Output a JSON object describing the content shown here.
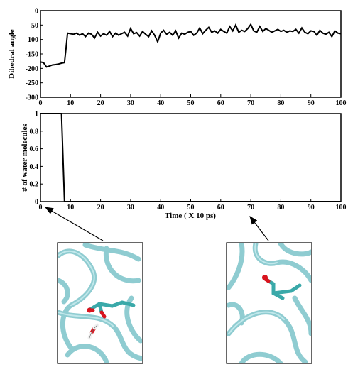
{
  "chart_data": [
    {
      "type": "line",
      "ylabel": "Dihedral angle",
      "xlabel": "",
      "xlim": [
        0,
        100
      ],
      "ylim": [
        -300,
        0
      ],
      "xticks": [
        "0",
        "10",
        "20",
        "30",
        "40",
        "50",
        "60",
        "70",
        "80",
        "90",
        "100"
      ],
      "yticks": [
        "0",
        "-50",
        "-100",
        "-150",
        "-200",
        "-250",
        "-300"
      ],
      "grid": false,
      "series": [
        {
          "x": [
            0,
            1,
            2,
            3,
            4,
            5,
            6,
            7,
            8,
            8.5,
            9,
            10,
            11,
            12,
            13,
            14,
            15,
            16,
            17,
            18,
            19,
            20,
            21,
            22,
            23,
            24,
            25,
            26,
            27,
            28,
            29,
            30,
            31,
            32,
            33,
            34,
            35,
            36,
            37,
            38,
            39,
            40,
            41,
            42,
            43,
            44,
            45,
            46,
            47,
            48,
            49,
            50,
            51,
            52,
            53,
            54,
            55,
            56,
            57,
            58,
            59,
            60,
            61,
            62,
            63,
            64,
            65,
            66,
            67,
            68,
            69,
            70,
            71,
            72,
            73,
            74,
            75,
            76,
            77,
            78,
            79,
            80,
            81,
            82,
            83,
            84,
            85,
            86,
            87,
            88,
            89,
            90,
            91,
            92,
            93,
            94,
            95,
            96,
            97,
            98,
            99,
            100
          ],
          "y": [
            -178,
            -180,
            -195,
            -192,
            -188,
            -187,
            -185,
            -182,
            -180,
            -130,
            -78,
            -80,
            -82,
            -78,
            -85,
            -80,
            -90,
            -78,
            -82,
            -95,
            -75,
            -88,
            -80,
            -85,
            -72,
            -90,
            -78,
            -85,
            -80,
            -75,
            -88,
            -62,
            -80,
            -76,
            -88,
            -72,
            -82,
            -90,
            -70,
            -85,
            -108,
            -78,
            -68,
            -82,
            -75,
            -85,
            -70,
            -95,
            -78,
            -82,
            -75,
            -72,
            -85,
            -78,
            -60,
            -80,
            -68,
            -58,
            -75,
            -70,
            -78,
            -65,
            -72,
            -78,
            -55,
            -70,
            -50,
            -75,
            -68,
            -72,
            -62,
            -48,
            -70,
            -75,
            -55,
            -72,
            -62,
            -68,
            -75,
            -70,
            -65,
            -72,
            -68,
            -75,
            -70,
            -72,
            -65,
            -78,
            -60,
            -75,
            -80,
            -70,
            -72,
            -85,
            -68,
            -78,
            -82,
            -75,
            -90,
            -70,
            -78,
            -80
          ]
        }
      ]
    },
    {
      "type": "line",
      "ylabel": "# of water molecules",
      "xlabel": "Time ( X 10 ps)",
      "xlim": [
        0,
        100
      ],
      "ylim": [
        0,
        1
      ],
      "xticks": [
        "0",
        "10",
        "20",
        "30",
        "40",
        "50",
        "60",
        "70",
        "80",
        "90",
        "100"
      ],
      "yticks": [
        "0",
        "0.2",
        "0.4",
        "0.6",
        "0.8",
        "1"
      ],
      "grid": false,
      "series": [
        {
          "x": [
            0,
            7,
            8,
            100
          ],
          "y": [
            1,
            1,
            0,
            0
          ]
        }
      ]
    }
  ],
  "annotations": {
    "arrow_left_icon": "arrow-up-left-icon",
    "arrow_right_icon": "arrow-up-left-icon",
    "panel_left": "molecular-snapshot-with-water",
    "panel_right": "molecular-snapshot-without-water"
  },
  "colors": {
    "line": "#000000",
    "ribbon": "#6bbcc2",
    "ribbon_light": "#a9dde0",
    "ligand_teal": "#3aa9a9",
    "oxygen_red": "#d8141e"
  }
}
